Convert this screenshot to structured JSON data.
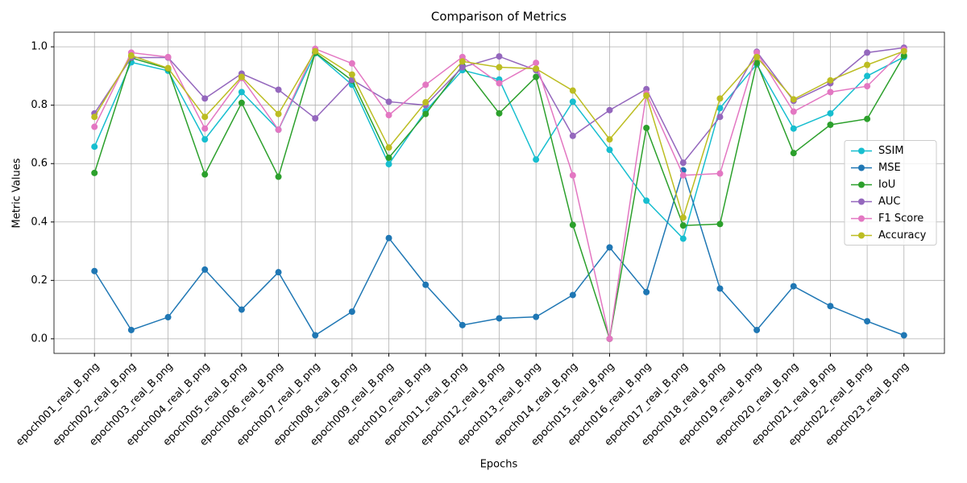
{
  "chart_data": {
    "type": "line",
    "title": "Comparison of Metrics",
    "x_label": "Epochs",
    "y_label": "Metric Values",
    "categories": [
      "epoch001_real_B.png",
      "epoch002_real_B.png",
      "epoch003_real_B.png",
      "epoch004_real_B.png",
      "epoch005_real_B.png",
      "epoch006_real_B.png",
      "epoch007_real_B.png",
      "epoch008_real_B.png",
      "epoch009_real_B.png",
      "epoch010_real_B.png",
      "epoch011_real_B.png",
      "epoch012_real_B.png",
      "epoch013_real_B.png",
      "epoch014_real_B.png",
      "epoch015_real_B.png",
      "epoch016_real_B.png",
      "epoch017_real_B.png",
      "epoch018_real_B.png",
      "epoch019_real_B.png",
      "epoch020_real_B.png",
      "epoch021_real_B.png",
      "epoch022_real_B.png",
      "epoch023_real_B.png"
    ],
    "series": [
      {
        "name": "SSIM",
        "color": "#17becf",
        "values": [
          0.658,
          0.947,
          0.918,
          0.683,
          0.845,
          0.716,
          0.978,
          0.87,
          0.598,
          0.78,
          0.92,
          0.888,
          0.614,
          0.812,
          0.647,
          0.473,
          0.343,
          0.79,
          0.94,
          0.72,
          0.772,
          0.9,
          0.965
        ]
      },
      {
        "name": "MSE",
        "color": "#1f77b4",
        "values": [
          0.232,
          0.03,
          0.074,
          0.237,
          0.1,
          0.228,
          0.012,
          0.093,
          0.345,
          0.185,
          0.047,
          0.07,
          0.075,
          0.15,
          0.313,
          0.16,
          0.577,
          0.172,
          0.03,
          0.18,
          0.112,
          0.06,
          0.012
        ]
      },
      {
        "name": "IoU",
        "color": "#2ca02c",
        "values": [
          0.568,
          0.962,
          0.925,
          0.563,
          0.808,
          0.555,
          0.98,
          0.885,
          0.62,
          0.77,
          0.935,
          0.772,
          0.897,
          0.39,
          0.0,
          0.722,
          0.388,
          0.393,
          0.945,
          0.636,
          0.733,
          0.753,
          0.97
        ]
      },
      {
        "name": "AUC",
        "color": "#9467bd",
        "values": [
          0.772,
          0.963,
          0.963,
          0.823,
          0.908,
          0.853,
          0.755,
          0.887,
          0.812,
          0.8,
          0.93,
          0.967,
          0.92,
          0.695,
          0.783,
          0.855,
          0.603,
          0.76,
          0.983,
          0.815,
          0.875,
          0.98,
          0.997
        ]
      },
      {
        "name": "F1 Score",
        "color": "#e377c2",
        "values": [
          0.726,
          0.98,
          0.965,
          0.72,
          0.893,
          0.716,
          0.993,
          0.943,
          0.766,
          0.87,
          0.965,
          0.875,
          0.945,
          0.56,
          0.0,
          0.84,
          0.56,
          0.566,
          0.98,
          0.778,
          0.845,
          0.865,
          0.99
        ]
      },
      {
        "name": "Accuracy",
        "color": "#bcbd22",
        "values": [
          0.76,
          0.97,
          0.927,
          0.76,
          0.897,
          0.77,
          0.985,
          0.905,
          0.655,
          0.81,
          0.95,
          0.93,
          0.925,
          0.85,
          0.683,
          0.833,
          0.415,
          0.823,
          0.965,
          0.82,
          0.885,
          0.938,
          0.985
        ]
      }
    ],
    "ylim": [
      -0.05,
      1.05
    ],
    "yticks": [
      {
        "value": 0,
        "label": "0.0"
      },
      0.2,
      0.4,
      0.6,
      0.8,
      {
        "value": 1,
        "label": "1.0"
      }
    ],
    "grid": true,
    "legend_loc": "center right"
  }
}
